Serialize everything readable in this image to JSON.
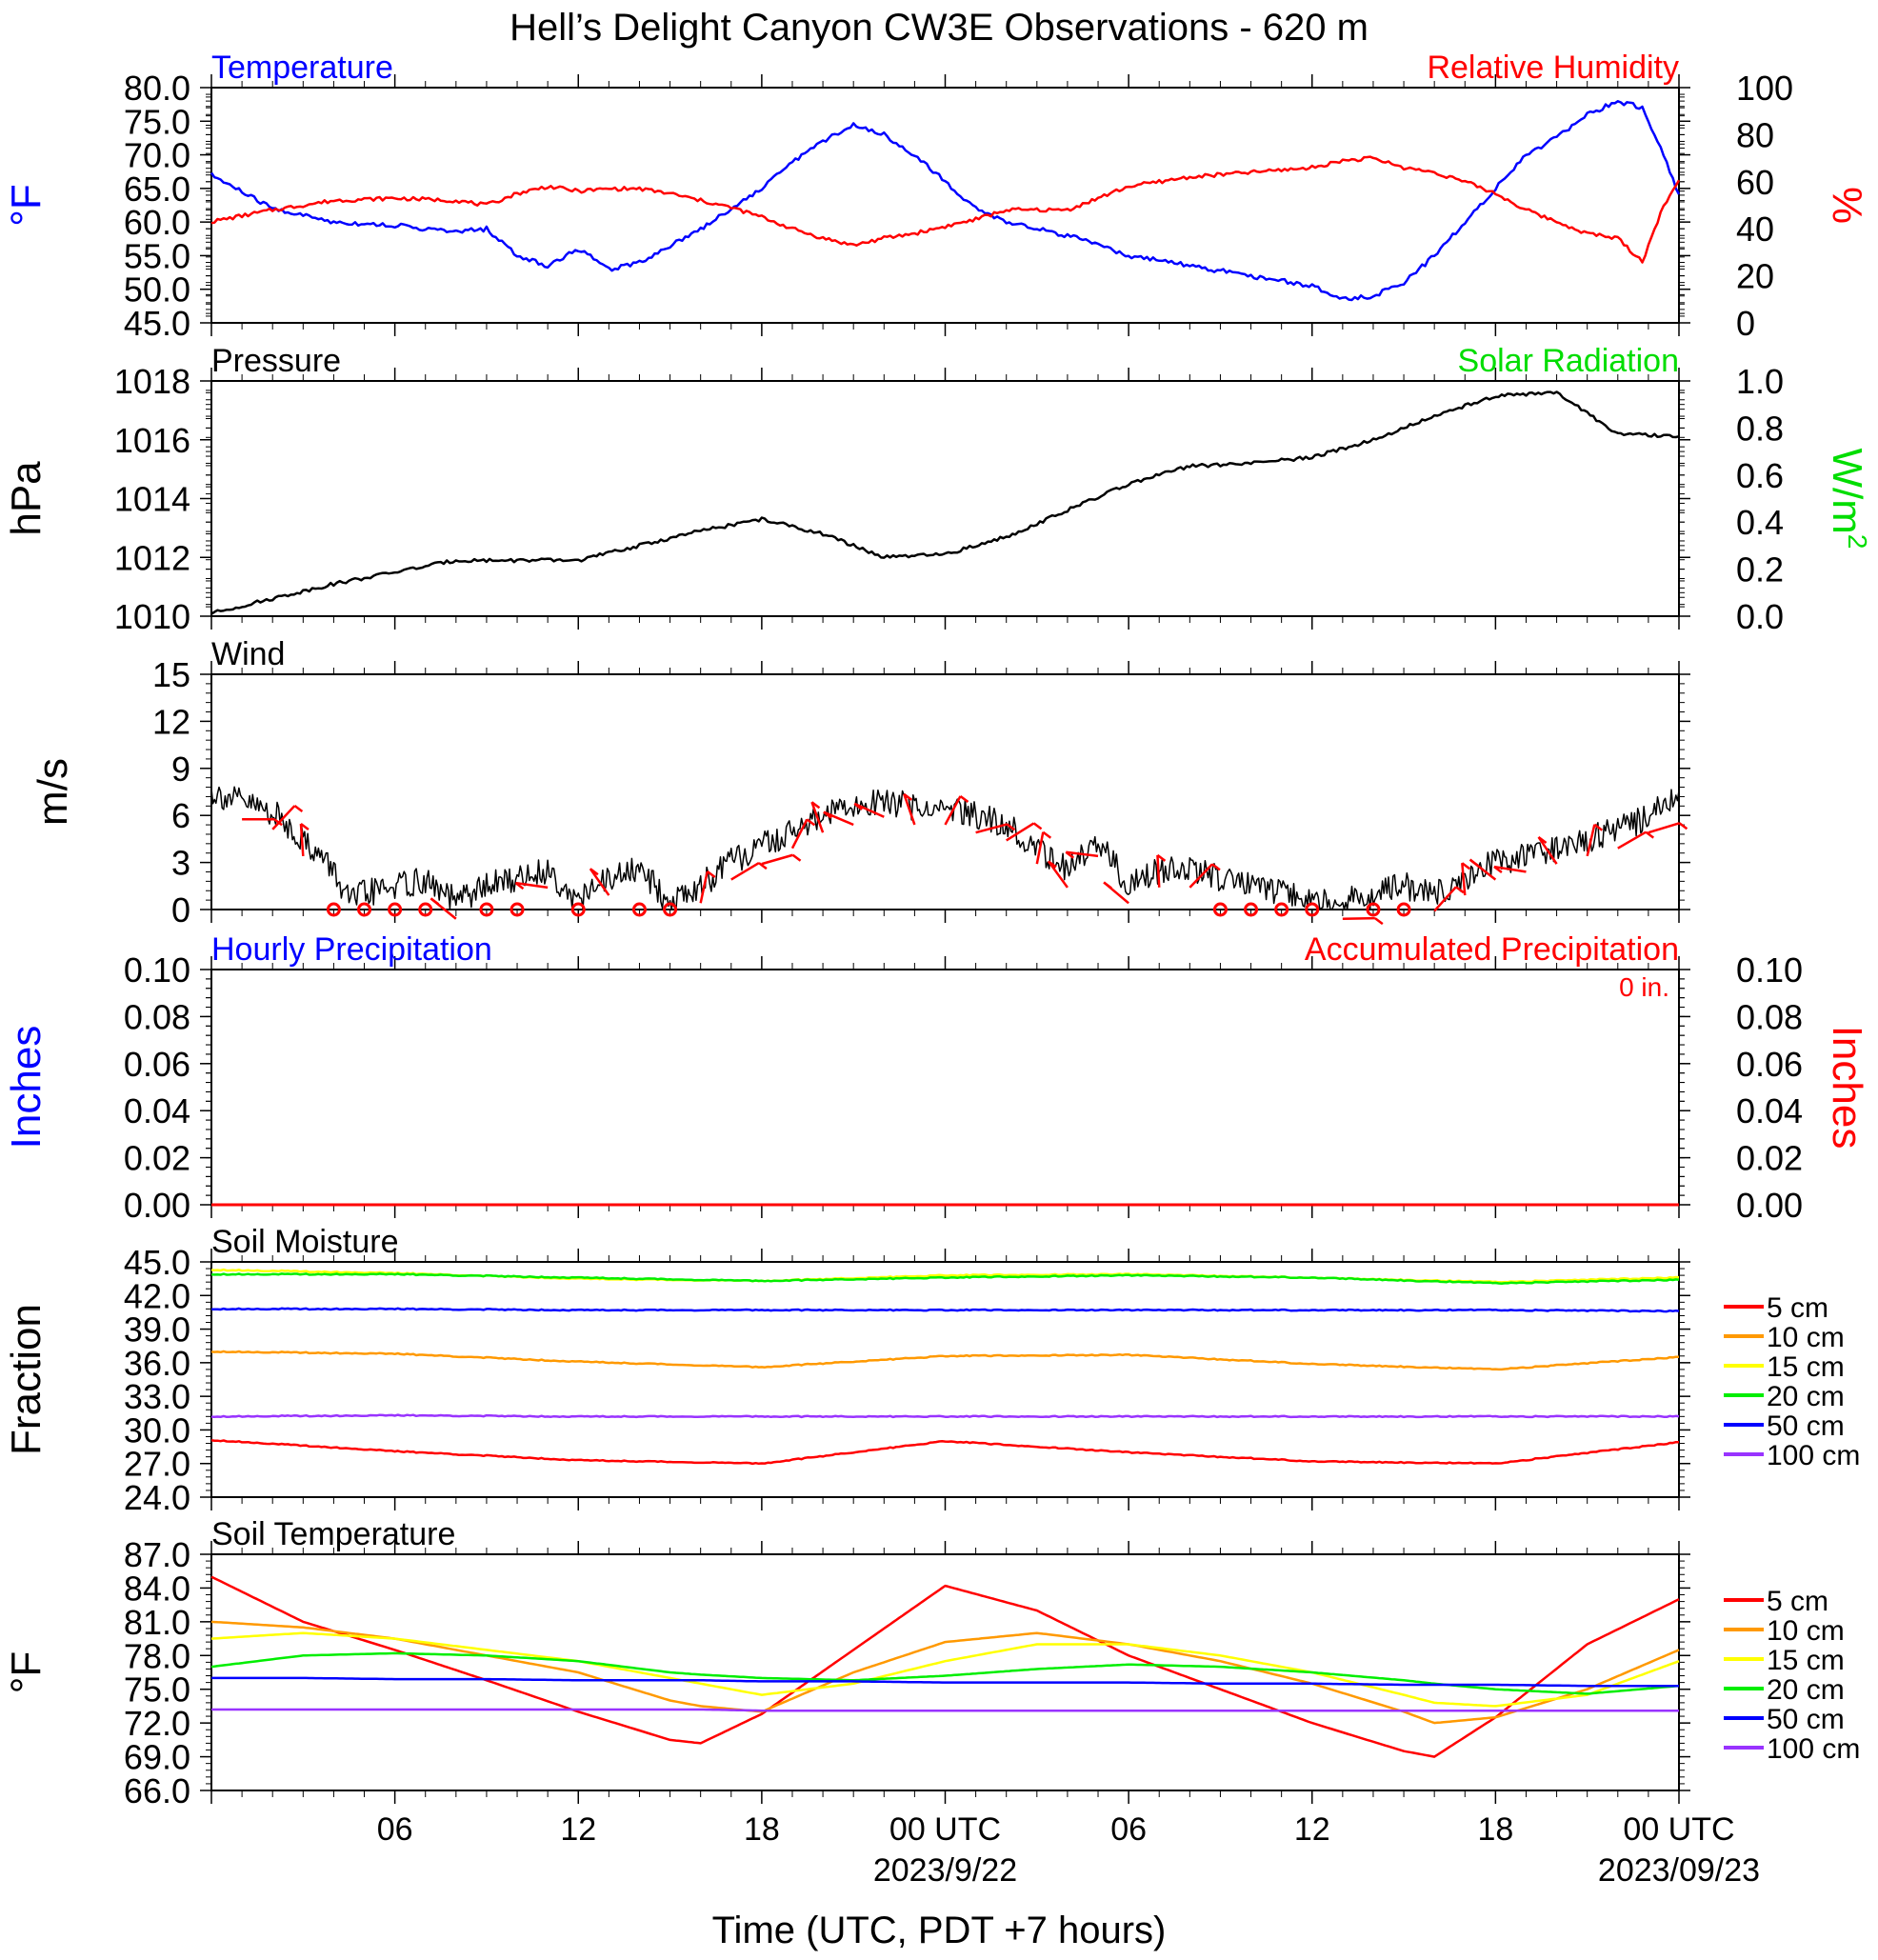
{
  "title": "Hell’s Delight Canyon CW3E Observations - 620 m",
  "xlabel": "Time (UTC, PDT +7 hours)",
  "x_ticks": [
    "06",
    "12",
    "18",
    "00 UTC",
    "06",
    "12",
    "18",
    "00 UTC"
  ],
  "date_labels": [
    "2023/9/22",
    "2023/09/23"
  ],
  "chart_data": [
    {
      "type": "line",
      "title_left": "Temperature",
      "title_right": "Relative Humidity",
      "ylabel_left": "°F",
      "ylabel_right": "%",
      "ylim_left": [
        45,
        80
      ],
      "ylim_right": [
        0,
        100
      ],
      "yticks_left": [
        "80.0",
        "75.0",
        "70.0",
        "65.0",
        "60.0",
        "55.0",
        "50.0",
        "45.0"
      ],
      "yticks_right": [
        "100",
        "80",
        "60",
        "40",
        "20",
        "0"
      ],
      "colors": {
        "temperature": "#0000ff",
        "relative_humidity": "#ff0000"
      },
      "x_hours": [
        0,
        2,
        4,
        6,
        8,
        9,
        10,
        11,
        12,
        13,
        14,
        15,
        16,
        17,
        18,
        19,
        20,
        21,
        22,
        23,
        24,
        25,
        26,
        28,
        30,
        32,
        34,
        36,
        37,
        38,
        39,
        40,
        41,
        42,
        43,
        44,
        45,
        46,
        46.8,
        47.5,
        48
      ],
      "series": [
        {
          "name": "Temperature",
          "axis": "left",
          "values": [
            67,
            62,
            60,
            59.5,
            58.5,
            59,
            55,
            53.5,
            56,
            53,
            54,
            56.5,
            59,
            62,
            65,
            69,
            72,
            74.5,
            73,
            70,
            66,
            62,
            60,
            58,
            55,
            53.5,
            52,
            50.5,
            48.5,
            49,
            51,
            55,
            60,
            65,
            70,
            72.5,
            76,
            78,
            77,
            70,
            64
          ]
        },
        {
          "name": "Relative Humidity",
          "axis": "right",
          "values": [
            43,
            48,
            52,
            53,
            52,
            50,
            55,
            58,
            56,
            57,
            57,
            55,
            52,
            49,
            45,
            40,
            36,
            33,
            36,
            38,
            41,
            44,
            48,
            48,
            58,
            62,
            64,
            66,
            69,
            70,
            66,
            64,
            60,
            55,
            48,
            43,
            38,
            36,
            26,
            50,
            60
          ]
        }
      ]
    },
    {
      "type": "line",
      "title_left": "Pressure",
      "title_right": "Solar Radiation",
      "ylabel_left": "hPa",
      "ylabel_right": "W/m",
      "ylabel_right_sup": "2",
      "ylim_left": [
        1010,
        1018
      ],
      "ylim_right": [
        0,
        1
      ],
      "yticks_left": [
        "1018",
        "1016",
        "1014",
        "1012",
        "1010"
      ],
      "yticks_right": [
        "1.0",
        "0.8",
        "0.6",
        "0.4",
        "0.2",
        "0.0"
      ],
      "colors": {
        "pressure": "#000000",
        "solar_radiation": "#00dd00"
      },
      "x_hours": [
        0,
        2,
        4,
        6,
        8,
        10,
        12,
        14,
        16,
        18,
        20,
        22,
        24,
        26,
        28,
        30,
        32,
        34,
        36,
        38,
        40,
        42,
        44,
        46,
        48
      ],
      "series": [
        {
          "name": "Pressure",
          "axis": "left",
          "values": [
            1010.1,
            1010.6,
            1011.1,
            1011.5,
            1011.9,
            1011.9,
            1011.9,
            1012.4,
            1012.9,
            1013.3,
            1012.8,
            1012.0,
            1012.1,
            1012.7,
            1013.6,
            1014.5,
            1015.1,
            1015.2,
            1015.4,
            1016.0,
            1016.8,
            1017.5,
            1017.6,
            1016.2,
            1016.1
          ]
        }
      ]
    },
    {
      "type": "line",
      "title_left": "Wind",
      "ylabel_left": "m/s",
      "ylim_left": [
        0,
        15
      ],
      "yticks_left": [
        "15",
        "12",
        "9",
        "6",
        "3",
        "0"
      ],
      "colors": {
        "speed": "#000000",
        "barbs": "#ff0000"
      },
      "x_hours": [
        0,
        2,
        3,
        4,
        4.5,
        5,
        6,
        7,
        8,
        9,
        10,
        11,
        12,
        13,
        14,
        15,
        16,
        17,
        18,
        19,
        20,
        21,
        22,
        23,
        24,
        25,
        26,
        27,
        28,
        29,
        30,
        31,
        32,
        33,
        34,
        35,
        36,
        37,
        38,
        39,
        40,
        41,
        42,
        43,
        44,
        45,
        46,
        47,
        48
      ],
      "series": [
        {
          "name": "Wind Speed",
          "axis": "left",
          "values": [
            7.5,
            6.2,
            4.5,
            2.5,
            0.5,
            1.0,
            1.5,
            1.8,
            0.5,
            1.5,
            2.0,
            2.5,
            0.5,
            2.0,
            2.5,
            0.5,
            1.5,
            3.0,
            4.0,
            5.0,
            6.0,
            6.5,
            7.0,
            6.5,
            6.5,
            6.0,
            5.5,
            4.0,
            2.5,
            4.5,
            1.5,
            2.5,
            2.5,
            2.0,
            1.5,
            1.0,
            0.5,
            0.5,
            1.0,
            1.5,
            1.0,
            2.0,
            3.0,
            3.5,
            4.0,
            4.5,
            5.0,
            6.0,
            7.0
          ]
        }
      ],
      "calm_hours": [
        4,
        5,
        6,
        7,
        9,
        10,
        12,
        14,
        15,
        33,
        34,
        35,
        36,
        38,
        39
      ],
      "barb_hours": [
        1,
        2,
        3,
        8,
        11,
        13,
        16,
        17,
        18,
        19,
        20,
        21,
        22,
        23,
        24,
        25,
        26,
        27,
        28,
        29,
        30,
        31,
        32,
        37,
        40,
        41,
        42,
        43,
        44,
        45,
        46,
        47
      ]
    },
    {
      "type": "line",
      "title_left": "Hourly Precipitation",
      "title_right": "Accumulated Precipitation",
      "annotation": "0 in.",
      "ylabel_left": "Inches",
      "ylabel_right": "Inches",
      "ylim_left": [
        0,
        0.1
      ],
      "ylim_right": [
        0,
        0.1
      ],
      "yticks_left": [
        "0.10",
        "0.08",
        "0.06",
        "0.04",
        "0.02",
        "0.00"
      ],
      "yticks_right": [
        "0.10",
        "0.08",
        "0.06",
        "0.04",
        "0.02",
        "0.00"
      ],
      "colors": {
        "hourly": "#0000ff",
        "accumulated": "#ff0000"
      },
      "x_hours": [
        0,
        48
      ],
      "series": [
        {
          "name": "Accumulated Precipitation",
          "axis": "right",
          "values": [
            0,
            0
          ]
        }
      ]
    },
    {
      "type": "line",
      "title_left": "Soil Moisture",
      "ylabel_left": "Fraction",
      "ylim_left": [
        24,
        45
      ],
      "yticks_left": [
        "45.0",
        "42.0",
        "39.0",
        "36.0",
        "33.0",
        "30.0",
        "27.0",
        "24.0"
      ],
      "x_hours": [
        0,
        6,
        12,
        18,
        24,
        30,
        36,
        42,
        48
      ],
      "series": [
        {
          "name": "5 cm",
          "color": "#ff0000",
          "values": [
            29.1,
            28.1,
            27.3,
            27.0,
            29.0,
            28.0,
            27.2,
            27.0,
            28.9
          ]
        },
        {
          "name": "10 cm",
          "color": "#ff9900",
          "values": [
            37.0,
            36.8,
            36.1,
            35.6,
            36.6,
            36.7,
            35.9,
            35.4,
            36.5
          ]
        },
        {
          "name": "15 cm",
          "color": "#ffff00",
          "values": [
            44.3,
            44.0,
            43.5,
            43.3,
            43.8,
            43.9,
            43.6,
            43.2,
            43.6
          ]
        },
        {
          "name": "20 cm",
          "color": "#00ee00",
          "values": [
            43.9,
            43.9,
            43.6,
            43.3,
            43.6,
            43.8,
            43.6,
            43.1,
            43.4
          ]
        },
        {
          "name": "50 cm",
          "color": "#0000ff",
          "values": [
            40.8,
            40.8,
            40.7,
            40.7,
            40.7,
            40.7,
            40.7,
            40.7,
            40.6
          ]
        },
        {
          "name": "100 cm",
          "color": "#9933ff",
          "values": [
            31.2,
            31.3,
            31.2,
            31.2,
            31.2,
            31.2,
            31.2,
            31.2,
            31.2
          ]
        }
      ]
    },
    {
      "type": "line",
      "title_left": "Soil Temperature",
      "ylabel_left": "°F",
      "ylim_left": [
        66,
        87
      ],
      "yticks_left": [
        "87.0",
        "84.0",
        "81.0",
        "78.0",
        "75.0",
        "72.0",
        "69.0",
        "66.0"
      ],
      "x_hours": [
        0,
        3,
        6,
        9,
        12,
        15,
        16,
        18,
        21,
        24,
        27,
        30,
        33,
        36,
        39,
        40,
        42,
        45,
        48
      ],
      "series": [
        {
          "name": "5 cm",
          "color": "#ff0000",
          "values": [
            85.0,
            81.0,
            78.5,
            75.8,
            73.0,
            70.5,
            70.2,
            72.8,
            78.5,
            84.2,
            82.0,
            78.0,
            75.0,
            72.0,
            69.5,
            69.0,
            72.5,
            79.0,
            83.0
          ]
        },
        {
          "name": "10 cm",
          "color": "#ff9900",
          "values": [
            81.0,
            80.5,
            79.5,
            78.0,
            76.5,
            74.0,
            73.5,
            73.0,
            76.5,
            79.2,
            80.0,
            79.0,
            77.5,
            75.5,
            73.0,
            72.0,
            72.5,
            75.0,
            78.5
          ]
        },
        {
          "name": "15 cm",
          "color": "#ffff00",
          "values": [
            79.5,
            80.0,
            79.5,
            78.5,
            77.5,
            76.0,
            75.5,
            74.5,
            75.5,
            77.5,
            79.0,
            79.0,
            78.0,
            76.5,
            74.5,
            73.8,
            73.5,
            74.5,
            77.5
          ]
        },
        {
          "name": "20 cm",
          "color": "#00ee00",
          "values": [
            77.0,
            78.0,
            78.2,
            78.0,
            77.5,
            76.5,
            76.3,
            76.0,
            75.8,
            76.2,
            76.8,
            77.2,
            77.0,
            76.5,
            75.8,
            75.5,
            75.0,
            74.6,
            75.3
          ]
        },
        {
          "name": "50 cm",
          "color": "#0000ff",
          "values": [
            76.0,
            76.0,
            75.9,
            75.9,
            75.8,
            75.8,
            75.8,
            75.7,
            75.7,
            75.6,
            75.6,
            75.6,
            75.5,
            75.5,
            75.4,
            75.4,
            75.4,
            75.3,
            75.3
          ]
        },
        {
          "name": "100 cm",
          "color": "#9933ff",
          "values": [
            73.2,
            73.2,
            73.2,
            73.2,
            73.2,
            73.2,
            73.2,
            73.1,
            73.1,
            73.1,
            73.1,
            73.1,
            73.1,
            73.1,
            73.1,
            73.1,
            73.1,
            73.1,
            73.1
          ]
        }
      ]
    }
  ]
}
